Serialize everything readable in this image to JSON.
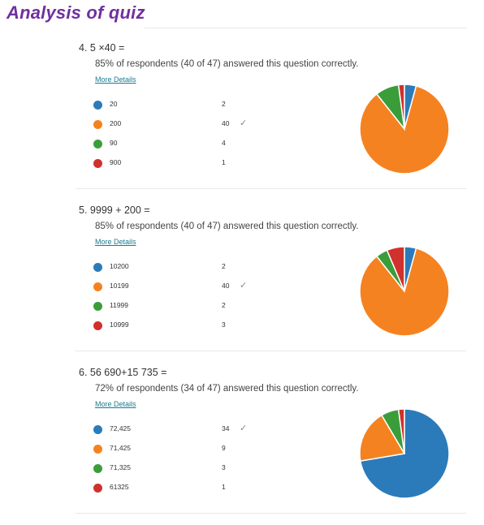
{
  "page": {
    "title": "Analysis of quiz"
  },
  "colors": {
    "title": "#7030a0",
    "link": "#1a7c8f",
    "series": [
      "#2b7bba",
      "#f58220",
      "#3a9d3a",
      "#d0312d"
    ]
  },
  "icons": {
    "correct": "checkmark-icon"
  },
  "questions": [
    {
      "number": "4.",
      "text": "5 ×40 =",
      "summary": "85% of respondents (40 of 47) answered this question correctly.",
      "more": "More Details",
      "options": [
        {
          "label": "20",
          "count": "2",
          "correct": false
        },
        {
          "label": "200",
          "count": "40",
          "correct": true
        },
        {
          "label": "90",
          "count": "4",
          "correct": false
        },
        {
          "label": "900",
          "count": "1",
          "correct": false
        }
      ]
    },
    {
      "number": "5.",
      "text": "9999 + 200 =",
      "summary": "85% of respondents (40 of 47) answered this question correctly.",
      "more": "More Details",
      "options": [
        {
          "label": "10200",
          "count": "2",
          "correct": false
        },
        {
          "label": "10199",
          "count": "40",
          "correct": true
        },
        {
          "label": "11999",
          "count": "2",
          "correct": false
        },
        {
          "label": "10999",
          "count": "3",
          "correct": false
        }
      ]
    },
    {
      "number": "6.",
      "text": "56 690+15 735 =",
      "summary": "72% of respondents (34 of 47) answered this question correctly.",
      "more": "More Details",
      "options": [
        {
          "label": "72,425",
          "count": "34",
          "correct": true
        },
        {
          "label": "71,425",
          "count": "9",
          "correct": false
        },
        {
          "label": "71,325",
          "count": "3",
          "correct": false
        },
        {
          "label": "61325",
          "count": "1",
          "correct": false
        }
      ]
    }
  ],
  "chart_data": [
    {
      "type": "pie",
      "categories": [
        "20",
        "200",
        "90",
        "900"
      ],
      "values": [
        2,
        40,
        4,
        1
      ]
    },
    {
      "type": "pie",
      "categories": [
        "10200",
        "10199",
        "11999",
        "10999"
      ],
      "values": [
        2,
        40,
        2,
        3
      ]
    },
    {
      "type": "pie",
      "categories": [
        "72,425",
        "71,425",
        "71,325",
        "61325"
      ],
      "values": [
        34,
        9,
        3,
        1
      ]
    }
  ]
}
